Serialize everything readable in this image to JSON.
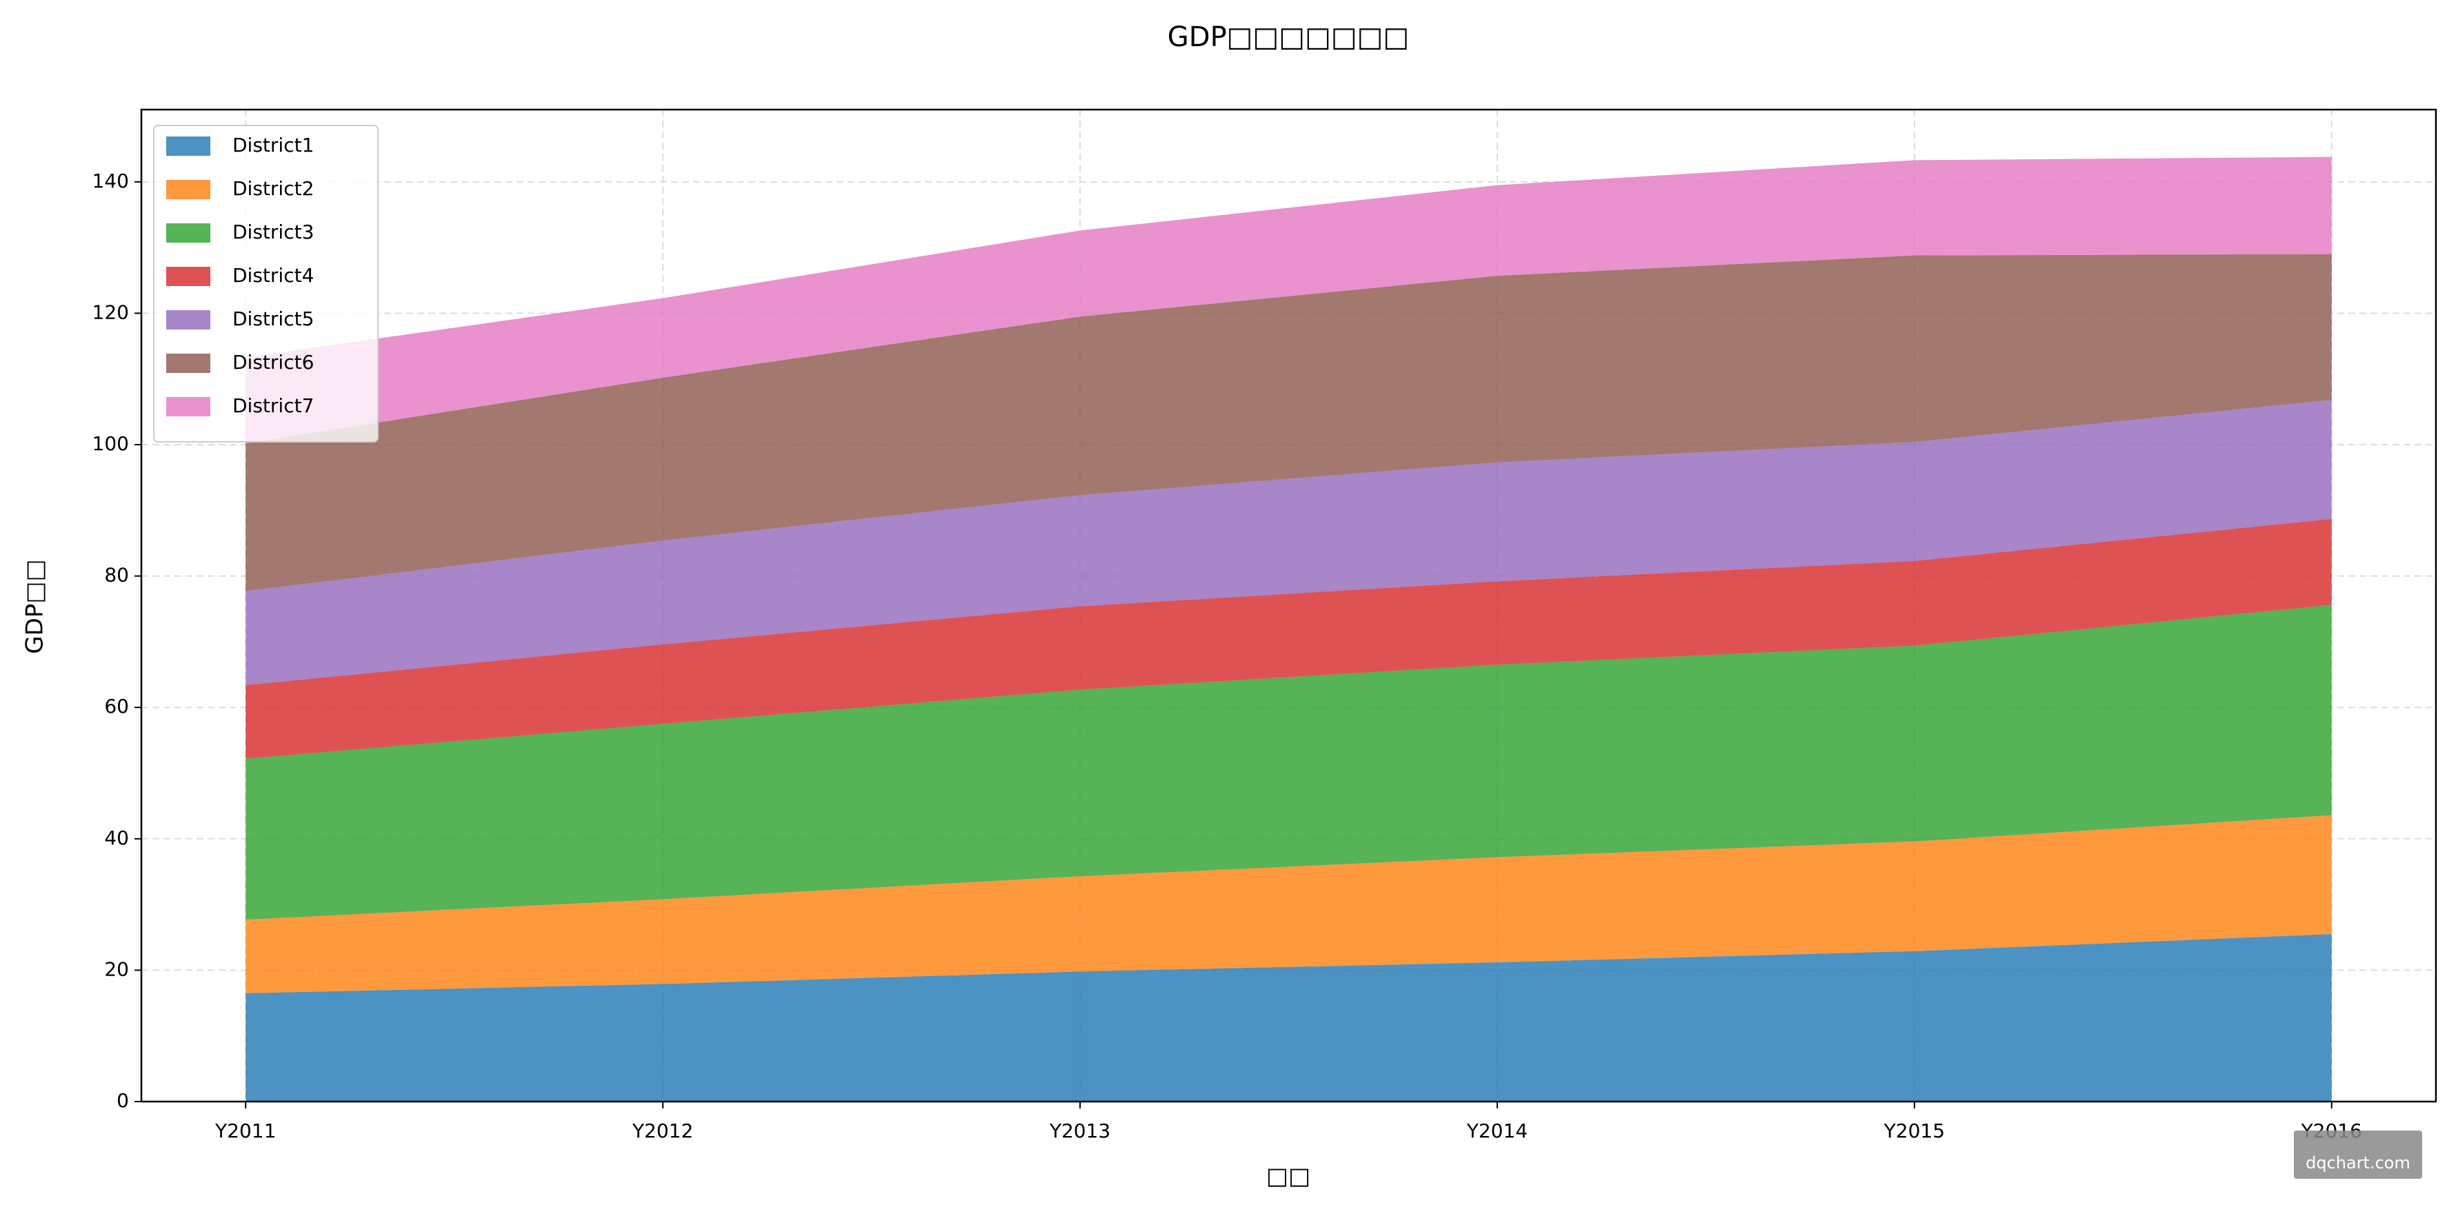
{
  "chart_data": {
    "type": "stacked_area",
    "title": "GDP□□□□□□□",
    "x_label": "□□",
    "y_label": "GDP□□",
    "categories": [
      "Y2011",
      "Y2012",
      "Y2013",
      "Y2014",
      "Y2015",
      "Y2016"
    ],
    "series": [
      {
        "name": "District1",
        "color": "#1f77b4",
        "values": [
          16.5,
          17.9,
          19.8,
          21.2,
          22.9,
          25.5
        ]
      },
      {
        "name": "District2",
        "color": "#ff7f0e",
        "values": [
          11.2,
          12.9,
          14.5,
          16.0,
          16.7,
          18.1
        ]
      },
      {
        "name": "District3",
        "color": "#2ca02c",
        "values": [
          24.5,
          26.7,
          28.4,
          29.3,
          29.8,
          32.0
        ]
      },
      {
        "name": "District4",
        "color": "#d62728",
        "values": [
          11.2,
          12.1,
          12.7,
          12.7,
          12.9,
          13.1
        ]
      },
      {
        "name": "District5",
        "color": "#9467bd",
        "values": [
          14.3,
          15.8,
          16.9,
          18.1,
          18.1,
          18.1
        ]
      },
      {
        "name": "District6",
        "color": "#8c564b",
        "values": [
          22.5,
          24.8,
          27.2,
          28.4,
          28.4,
          22.2
        ]
      },
      {
        "name": "District7",
        "color": "#e377c2",
        "values": [
          13.1,
          12.1,
          13.1,
          13.8,
          14.5,
          14.8
        ]
      }
    ],
    "ylim": [
      0,
      151
    ],
    "yticks": [
      0,
      20,
      40,
      60,
      80,
      100,
      120,
      140
    ],
    "grid": true,
    "legend": "upper left",
    "opacity": 0.8,
    "watermark": "dqchart.com"
  }
}
